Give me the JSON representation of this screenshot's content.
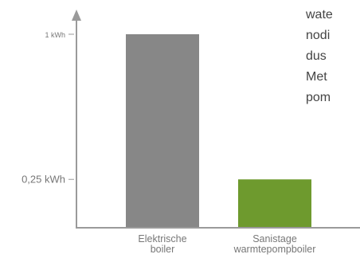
{
  "chart_data": {
    "type": "bar",
    "categories": [
      [
        "Elektrische",
        "boiler"
      ],
      [
        "Sanistage",
        "warmtepompboiler"
      ]
    ],
    "values": [
      1,
      0.25
    ],
    "unit": "kWh",
    "ytick_labels": [
      {
        "value": 1,
        "label": "1 kWh"
      },
      {
        "value": 0.25,
        "label": "0,25 kWh"
      }
    ],
    "ylim": [
      0,
      1.15
    ],
    "colors": [
      "#878787",
      "#6e9a2e"
    ],
    "axis_color": "#9a9a9a",
    "grid": false,
    "legend": "none"
  },
  "side_text": [
    "wate",
    "nodi",
    "dus",
    "Met",
    "pom"
  ]
}
